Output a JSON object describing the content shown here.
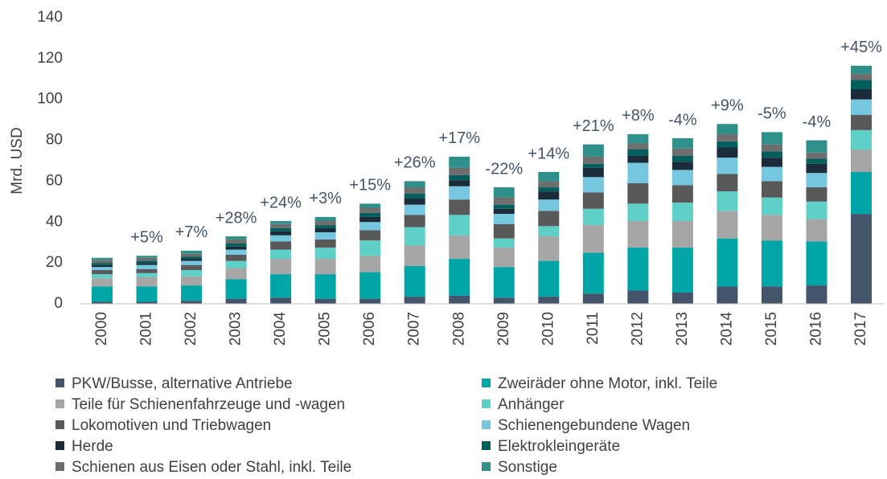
{
  "chart_data": {
    "type": "stacked_bar",
    "y_axis_label": "Mrd. USD",
    "categories": [
      "2000",
      "2001",
      "2002",
      "2003",
      "2004",
      "2005",
      "2006",
      "2007",
      "2008",
      "2009",
      "2010",
      "2011",
      "2012",
      "2013",
      "2014",
      "2015",
      "2016",
      "2017"
    ],
    "series": [
      {
        "name": "PKW/Busse, alternative Antriebe",
        "color": "#44546a",
        "values": [
          1,
          1,
          1.5,
          2.5,
          3,
          2.5,
          2.5,
          3.5,
          4,
          3,
          3.5,
          5,
          6.5,
          5.5,
          8.5,
          8.5,
          9,
          44
        ]
      },
      {
        "name": "Zweiräder ohne Motor, inkl. Teile",
        "color": "#00a5a8",
        "values": [
          7.5,
          7.5,
          7.5,
          9.5,
          11.5,
          12,
          13,
          15,
          18,
          15,
          17.5,
          20,
          21,
          22,
          23.5,
          22.5,
          21.5,
          20.5
        ]
      },
      {
        "name": "Teile für Schienenfahrzeuge und -wagen",
        "color": "#a6a6a6",
        "values": [
          4,
          4.5,
          4.5,
          5.5,
          7.5,
          7.5,
          8,
          10,
          11.5,
          9.5,
          12,
          13.5,
          13,
          13,
          13.5,
          12.5,
          11,
          11
        ]
      },
      {
        "name": "Anhänger",
        "color": "#5fd0c8",
        "values": [
          2,
          2,
          3,
          3.5,
          4.5,
          5.5,
          7.5,
          9,
          10,
          4.5,
          5,
          8,
          8.5,
          9,
          9.5,
          8.5,
          8.5,
          9.5
        ]
      },
      {
        "name": "Lokomotiven und Triebwagen",
        "color": "#595959",
        "values": [
          2,
          2,
          2.5,
          3,
          4,
          4,
          5,
          6,
          7.5,
          7,
          7.5,
          8,
          10,
          8.5,
          8.5,
          8,
          7,
          7.5
        ]
      },
      {
        "name": "Schienengebundene Wagen",
        "color": "#74c7df",
        "values": [
          1.5,
          2,
          2,
          2.5,
          3,
          3.5,
          4,
          5,
          6.5,
          5,
          5.5,
          7.5,
          10,
          7.5,
          8,
          7,
          7,
          7.5
        ]
      },
      {
        "name": "Herde",
        "color": "#1c2b3a",
        "values": [
          1,
          1,
          1,
          1.5,
          2,
          2,
          2.5,
          3,
          3,
          2.5,
          4,
          4.5,
          3.5,
          4,
          5,
          4.5,
          4.5,
          5
        ]
      },
      {
        "name": "Elektrokleingeräte",
        "color": "#005f5c",
        "values": [
          1,
          1,
          1,
          1.5,
          1.5,
          1.5,
          2,
          2.5,
          2.5,
          2,
          2,
          2,
          3,
          3,
          3,
          3,
          2.5,
          4.5
        ]
      },
      {
        "name": "Schienen aus Eisen oder Stahl, inkl. Teile",
        "color": "#6e6e6e",
        "values": [
          1.5,
          1.5,
          1.5,
          2,
          2,
          2,
          2.5,
          3,
          3.5,
          3.5,
          3,
          3.5,
          3,
          3.5,
          3.5,
          3.5,
          3,
          3
        ]
      },
      {
        "name": "Sonstige",
        "color": "#2f8f8a",
        "values": [
          1,
          1,
          1.5,
          1.5,
          1.5,
          2,
          2,
          3,
          5.5,
          5,
          4.5,
          6,
          4.5,
          5,
          5,
          6,
          6,
          4
        ]
      }
    ],
    "annotations": [
      {
        "category": "2001",
        "text": "+5%"
      },
      {
        "category": "2002",
        "text": "+7%"
      },
      {
        "category": "2003",
        "text": "+28%"
      },
      {
        "category": "2004",
        "text": "+24%"
      },
      {
        "category": "2005",
        "text": "+3%"
      },
      {
        "category": "2006",
        "text": "+15%"
      },
      {
        "category": "2007",
        "text": "+26%"
      },
      {
        "category": "2008",
        "text": "+17%"
      },
      {
        "category": "2009",
        "text": "-22%"
      },
      {
        "category": "2010",
        "text": "+14%"
      },
      {
        "category": "2011",
        "text": "+21%"
      },
      {
        "category": "2012",
        "text": "+8%"
      },
      {
        "category": "2013",
        "text": "-4%"
      },
      {
        "category": "2014",
        "text": "+9%"
      },
      {
        "category": "2015",
        "text": "-5%"
      },
      {
        "category": "2016",
        "text": "-4%"
      },
      {
        "category": "2017",
        "text": "+45%"
      }
    ],
    "ylim": [
      0,
      140
    ],
    "yticks": [
      0,
      20,
      40,
      60,
      80,
      100,
      120,
      140
    ],
    "grid": false,
    "legend": "bottom"
  }
}
